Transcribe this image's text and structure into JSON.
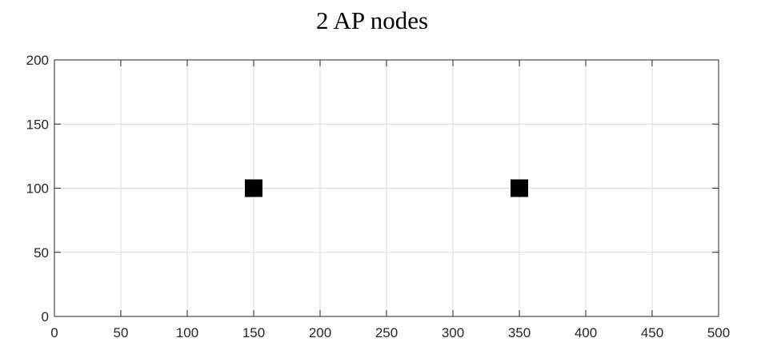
{
  "chart_data": {
    "type": "scatter",
    "title": "2 AP nodes",
    "xlabel": "",
    "ylabel": "",
    "xlim": [
      0,
      500
    ],
    "ylim": [
      0,
      200
    ],
    "xticks": [
      0,
      50,
      100,
      150,
      200,
      250,
      300,
      350,
      400,
      450,
      500
    ],
    "yticks": [
      0,
      50,
      100,
      150,
      200
    ],
    "grid": true,
    "marker": "square",
    "marker_color": "#000000",
    "points": [
      {
        "x": 150,
        "y": 100
      },
      {
        "x": 350,
        "y": 100
      }
    ]
  }
}
